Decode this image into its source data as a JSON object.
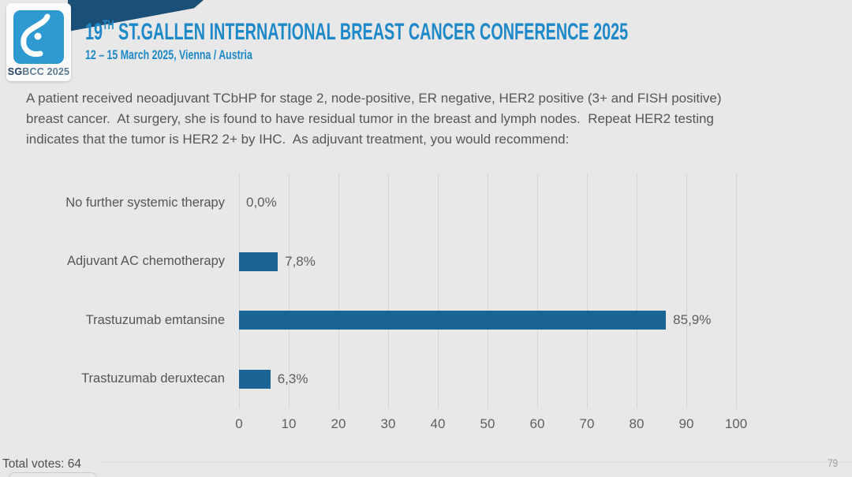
{
  "header": {
    "logo": {
      "caption_sg": "SG",
      "caption_rest": "BCC 2025"
    },
    "title_num": "19",
    "title_sup": "TH",
    "title_rest": " ST.GALLEN INTERNATIONAL BREAST CANCER CONFERENCE 2025",
    "subtitle": "12 – 15 March 2025, Vienna / Austria"
  },
  "question": "A patient received neoadjuvant TCbHP for stage 2, node-positive, ER negative, HER2 positive (3+ and FISH positive) breast cancer.  At surgery, she is found to have residual tumor in the breast and lymph nodes.  Repeat HER2 testing indicates that the tumor is HER2 2+ by IHC.  As adjuvant treatment, you would recommend:",
  "chart_data": {
    "type": "bar",
    "orientation": "horizontal",
    "categories": [
      "No further systemic therapy",
      "Adjuvant AC chemotherapy",
      "Trastuzumab emtansine",
      "Trastuzumab deruxtecan"
    ],
    "values": [
      0.0,
      7.8,
      85.9,
      6.3
    ],
    "value_labels": [
      "0,0%",
      "7,8%",
      "85,9%",
      "6,3%"
    ],
    "xlim": [
      0,
      100
    ],
    "xticks": [
      0,
      10,
      20,
      30,
      40,
      50,
      60,
      70,
      80,
      90,
      100
    ],
    "xlabel": "",
    "ylabel": "",
    "grid": "vertical",
    "legend": "none"
  },
  "footer": {
    "total_votes_label": "Total votes: 64",
    "page_number": "79"
  },
  "colors": {
    "accent_blue": "#1d89c8",
    "ribbon_navy": "#1a4f78",
    "logo_blue": "#2d9ad2",
    "bar_blue": "#1a6496",
    "background": "#e9e8e8"
  }
}
